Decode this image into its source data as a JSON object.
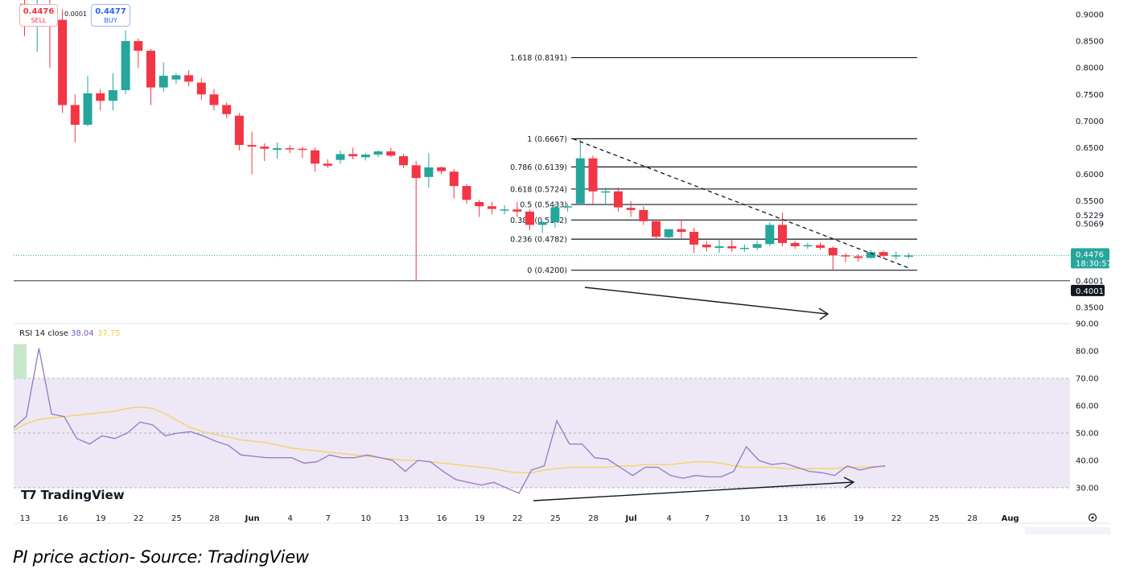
{
  "header": {
    "sell_price": "0.4476",
    "sell_label": "SELL",
    "spread": "0.0001",
    "buy_price": "0.4477",
    "buy_label": "BUY"
  },
  "price_axis": {
    "ticks": [
      "0.9000",
      "0.8500",
      "0.8000",
      "0.7500",
      "0.7000",
      "0.6500",
      "0.6000",
      "0.5500",
      "0.5229",
      "0.5069",
      "0.4001",
      "0.3500"
    ],
    "current_price": "0.4476",
    "countdown": "18:30:57",
    "support_label": "0.4001"
  },
  "time_axis": {
    "labels": [
      "13",
      "16",
      "19",
      "22",
      "25",
      "28",
      "Jun",
      "4",
      "7",
      "10",
      "13",
      "16",
      "19",
      "22",
      "25",
      "28",
      "Jul",
      "4",
      "7",
      "10",
      "13",
      "16",
      "19",
      "22",
      "25",
      "28",
      "Aug"
    ]
  },
  "rsi": {
    "label": "RSI 14 close",
    "value": "38.04",
    "ma_value": "37.75",
    "ticks": [
      "90.00",
      "80.00",
      "70.00",
      "60.00",
      "50.00",
      "40.00",
      "30.00"
    ]
  },
  "brand": "TradingView",
  "caption": "PI price action- Source: TradingView",
  "colors": {
    "up": "#26a69a",
    "down": "#f23645",
    "rsi_line": "#7e57c2",
    "rsi_ma": "#f7d15b",
    "rsi_band": "#ede7f6"
  },
  "chart_data": {
    "type": "candlestick",
    "symbol": "PI",
    "ylim": [
      0.33,
      0.93
    ],
    "support_level": 0.4001,
    "current_price": 0.4476,
    "fibonacci": [
      {
        "ratio": "1.618",
        "price": 0.8191,
        "label": "1.618 (0.8191)"
      },
      {
        "ratio": "1",
        "price": 0.6667,
        "label": "1 (0.6667)"
      },
      {
        "ratio": "0.786",
        "price": 0.6139,
        "label": "0.786 (0.6139)"
      },
      {
        "ratio": "0.618",
        "price": 0.5724,
        "label": "0.618 (0.5724)"
      },
      {
        "ratio": "0.5",
        "price": 0.5433,
        "label": "0.5 (0.5433)"
      },
      {
        "ratio": "0.382",
        "price": 0.5142,
        "label": "0.382 (0.5142)"
      },
      {
        "ratio": "0.236",
        "price": 0.4782,
        "label": "0.236 (0.4782)"
      },
      {
        "ratio": "0",
        "price": 0.42,
        "label": "0 (0.4200)"
      }
    ],
    "candles": [
      {
        "date": "May 12",
        "o": 0.92,
        "h": 0.97,
        "l": 0.86,
        "c": 0.89
      },
      {
        "date": "May 13",
        "o": 0.89,
        "h": 0.93,
        "l": 0.83,
        "c": 0.91
      },
      {
        "date": "May 14",
        "o": 0.91,
        "h": 0.93,
        "l": 0.8,
        "c": 0.89
      },
      {
        "date": "May 15",
        "o": 0.89,
        "h": 0.91,
        "l": 0.715,
        "c": 0.73
      },
      {
        "date": "May 16",
        "o": 0.73,
        "h": 0.75,
        "l": 0.66,
        "c": 0.693
      },
      {
        "date": "May 17",
        "o": 0.693,
        "h": 0.785,
        "l": 0.69,
        "c": 0.752
      },
      {
        "date": "May 18",
        "o": 0.752,
        "h": 0.76,
        "l": 0.72,
        "c": 0.738
      },
      {
        "date": "May 19",
        "o": 0.738,
        "h": 0.79,
        "l": 0.72,
        "c": 0.758
      },
      {
        "date": "May 20",
        "o": 0.758,
        "h": 0.87,
        "l": 0.75,
        "c": 0.85
      },
      {
        "date": "May 21",
        "o": 0.85,
        "h": 0.855,
        "l": 0.8,
        "c": 0.832
      },
      {
        "date": "May 22",
        "o": 0.832,
        "h": 0.835,
        "l": 0.73,
        "c": 0.763
      },
      {
        "date": "May 23",
        "o": 0.763,
        "h": 0.81,
        "l": 0.755,
        "c": 0.785
      },
      {
        "date": "May 24",
        "o": 0.778,
        "h": 0.79,
        "l": 0.77,
        "c": 0.786
      },
      {
        "date": "May 25",
        "o": 0.786,
        "h": 0.795,
        "l": 0.765,
        "c": 0.774
      },
      {
        "date": "May 26",
        "o": 0.772,
        "h": 0.78,
        "l": 0.74,
        "c": 0.75
      },
      {
        "date": "May 27",
        "o": 0.75,
        "h": 0.76,
        "l": 0.72,
        "c": 0.73
      },
      {
        "date": "May 28",
        "o": 0.73,
        "h": 0.735,
        "l": 0.705,
        "c": 0.713
      },
      {
        "date": "May 29",
        "o": 0.71,
        "h": 0.715,
        "l": 0.645,
        "c": 0.655
      },
      {
        "date": "May 30",
        "o": 0.655,
        "h": 0.68,
        "l": 0.6,
        "c": 0.652
      },
      {
        "date": "May 31",
        "o": 0.652,
        "h": 0.658,
        "l": 0.625,
        "c": 0.648
      },
      {
        "date": "Jun 1",
        "o": 0.646,
        "h": 0.66,
        "l": 0.63,
        "c": 0.649
      },
      {
        "date": "Jun 2",
        "o": 0.649,
        "h": 0.655,
        "l": 0.64,
        "c": 0.647
      },
      {
        "date": "Jun 3",
        "o": 0.648,
        "h": 0.652,
        "l": 0.63,
        "c": 0.646
      },
      {
        "date": "Jun 4",
        "o": 0.645,
        "h": 0.65,
        "l": 0.605,
        "c": 0.62
      },
      {
        "date": "Jun 5",
        "o": 0.62,
        "h": 0.628,
        "l": 0.612,
        "c": 0.616
      },
      {
        "date": "Jun 6",
        "o": 0.627,
        "h": 0.645,
        "l": 0.62,
        "c": 0.638
      },
      {
        "date": "Jun 7",
        "o": 0.638,
        "h": 0.65,
        "l": 0.628,
        "c": 0.634
      },
      {
        "date": "Jun 8",
        "o": 0.632,
        "h": 0.64,
        "l": 0.626,
        "c": 0.637
      },
      {
        "date": "Jun 9",
        "o": 0.637,
        "h": 0.645,
        "l": 0.632,
        "c": 0.643
      },
      {
        "date": "Jun 10",
        "o": 0.643,
        "h": 0.65,
        "l": 0.632,
        "c": 0.635
      },
      {
        "date": "Jun 11",
        "o": 0.634,
        "h": 0.638,
        "l": 0.612,
        "c": 0.617
      },
      {
        "date": "Jun 12",
        "o": 0.617,
        "h": 0.625,
        "l": 0.4,
        "c": 0.593
      },
      {
        "date": "Jun 13",
        "o": 0.595,
        "h": 0.64,
        "l": 0.575,
        "c": 0.613
      },
      {
        "date": "Jun 14",
        "o": 0.613,
        "h": 0.615,
        "l": 0.6,
        "c": 0.606
      },
      {
        "date": "Jun 15",
        "o": 0.605,
        "h": 0.61,
        "l": 0.555,
        "c": 0.578
      },
      {
        "date": "Jun 16",
        "o": 0.578,
        "h": 0.582,
        "l": 0.545,
        "c": 0.552
      },
      {
        "date": "Jun 17",
        "o": 0.548,
        "h": 0.552,
        "l": 0.52,
        "c": 0.54
      },
      {
        "date": "Jun 18",
        "o": 0.54,
        "h": 0.548,
        "l": 0.525,
        "c": 0.535
      },
      {
        "date": "Jun 19",
        "o": 0.532,
        "h": 0.542,
        "l": 0.525,
        "c": 0.534
      },
      {
        "date": "Jun 20",
        "o": 0.534,
        "h": 0.548,
        "l": 0.52,
        "c": 0.53
      },
      {
        "date": "Jun 21",
        "o": 0.53,
        "h": 0.534,
        "l": 0.495,
        "c": 0.505
      },
      {
        "date": "Jun 22",
        "o": 0.505,
        "h": 0.512,
        "l": 0.49,
        "c": 0.51
      },
      {
        "date": "Jun 23",
        "o": 0.51,
        "h": 0.545,
        "l": 0.5,
        "c": 0.538
      },
      {
        "date": "Jun 24",
        "o": 0.538,
        "h": 0.545,
        "l": 0.53,
        "c": 0.54
      },
      {
        "date": "Jun 25",
        "o": 0.545,
        "h": 0.665,
        "l": 0.543,
        "c": 0.63
      },
      {
        "date": "Jun 26",
        "o": 0.63,
        "h": 0.635,
        "l": 0.545,
        "c": 0.568
      },
      {
        "date": "Jun 27",
        "o": 0.568,
        "h": 0.575,
        "l": 0.545,
        "c": 0.568
      },
      {
        "date": "Jun 28",
        "o": 0.568,
        "h": 0.575,
        "l": 0.53,
        "c": 0.538
      },
      {
        "date": "Jun 29",
        "o": 0.537,
        "h": 0.55,
        "l": 0.52,
        "c": 0.533
      },
      {
        "date": "Jun 30",
        "o": 0.533,
        "h": 0.54,
        "l": 0.505,
        "c": 0.512
      },
      {
        "date": "Jul 1",
        "o": 0.512,
        "h": 0.515,
        "l": 0.478,
        "c": 0.483
      },
      {
        "date": "Jul 2",
        "o": 0.482,
        "h": 0.497,
        "l": 0.478,
        "c": 0.497
      },
      {
        "date": "Jul 3",
        "o": 0.497,
        "h": 0.515,
        "l": 0.48,
        "c": 0.492
      },
      {
        "date": "Jul 4",
        "o": 0.492,
        "h": 0.5,
        "l": 0.452,
        "c": 0.468
      },
      {
        "date": "Jul 5",
        "o": 0.468,
        "h": 0.475,
        "l": 0.455,
        "c": 0.463
      },
      {
        "date": "Jul 6",
        "o": 0.462,
        "h": 0.48,
        "l": 0.452,
        "c": 0.465
      },
      {
        "date": "Jul 7",
        "o": 0.465,
        "h": 0.478,
        "l": 0.455,
        "c": 0.461
      },
      {
        "date": "Jul 8",
        "o": 0.461,
        "h": 0.468,
        "l": 0.455,
        "c": 0.462
      },
      {
        "date": "Jul 9",
        "o": 0.462,
        "h": 0.475,
        "l": 0.458,
        "c": 0.469
      },
      {
        "date": "Jul 10",
        "o": 0.469,
        "h": 0.51,
        "l": 0.465,
        "c": 0.505
      },
      {
        "date": "Jul 11",
        "o": 0.505,
        "h": 0.528,
        "l": 0.465,
        "c": 0.471
      },
      {
        "date": "Jul 12",
        "o": 0.471,
        "h": 0.475,
        "l": 0.46,
        "c": 0.465
      },
      {
        "date": "Jul 13",
        "o": 0.465,
        "h": 0.472,
        "l": 0.46,
        "c": 0.467
      },
      {
        "date": "Jul 14",
        "o": 0.467,
        "h": 0.472,
        "l": 0.458,
        "c": 0.462
      },
      {
        "date": "Jul 15",
        "o": 0.462,
        "h": 0.465,
        "l": 0.42,
        "c": 0.448
      },
      {
        "date": "Jul 16",
        "o": 0.448,
        "h": 0.452,
        "l": 0.435,
        "c": 0.446
      },
      {
        "date": "Jul 17",
        "o": 0.446,
        "h": 0.45,
        "l": 0.436,
        "c": 0.443
      },
      {
        "date": "Jul 18",
        "o": 0.443,
        "h": 0.458,
        "l": 0.442,
        "c": 0.454
      },
      {
        "date": "Jul 19",
        "o": 0.454,
        "h": 0.457,
        "l": 0.442,
        "c": 0.447
      },
      {
        "date": "Jul 20",
        "o": 0.447,
        "h": 0.455,
        "l": 0.44,
        "c": 0.448
      },
      {
        "date": "Jul 21",
        "o": 0.447,
        "h": 0.452,
        "l": 0.442,
        "c": 0.4476
      }
    ],
    "rsi_values": [
      52,
      56,
      81,
      57,
      56,
      48,
      46,
      49,
      48,
      50,
      54,
      53,
      49,
      50,
      50.5,
      49,
      47,
      45.5,
      42,
      41.5,
      41,
      41,
      41,
      39,
      39.5,
      42,
      41,
      41,
      42,
      41,
      40,
      36,
      40,
      39.5,
      36,
      33,
      32,
      31,
      32,
      30,
      28,
      36.5,
      38,
      54.5,
      46,
      46,
      41,
      40.5,
      37.5,
      34.5,
      37.5,
      37.5,
      34.5,
      33.5,
      34.5,
      34,
      34,
      36,
      45,
      40,
      38.5,
      39,
      37.5,
      36,
      35.5,
      34.5,
      38,
      36.5,
      37.5,
      38.04
    ],
    "rsi_ma_values": [
      51,
      53.5,
      55,
      55.5,
      56,
      56.5,
      57,
      57.5,
      58,
      59,
      59.5,
      59,
      57,
      54.5,
      52,
      50.5,
      49.5,
      48.5,
      47.5,
      47,
      46.5,
      45.5,
      44.5,
      44,
      43.5,
      43,
      42.5,
      42,
      41.5,
      41,
      40.5,
      40,
      40,
      39.5,
      39,
      38.5,
      38,
      37.5,
      37,
      36,
      35.5,
      35.5,
      36.5,
      37,
      37.5,
      37.5,
      37.5,
      37.5,
      38,
      38,
      38.5,
      38.5,
      38.5,
      39,
      39.5,
      39.5,
      39,
      38,
      37.5,
      37.5,
      37.5,
      37,
      37,
      37,
      37,
      37,
      37.5,
      37.5,
      37.75,
      37.75
    ],
    "rsi_ylim": [
      24,
      91
    ]
  }
}
